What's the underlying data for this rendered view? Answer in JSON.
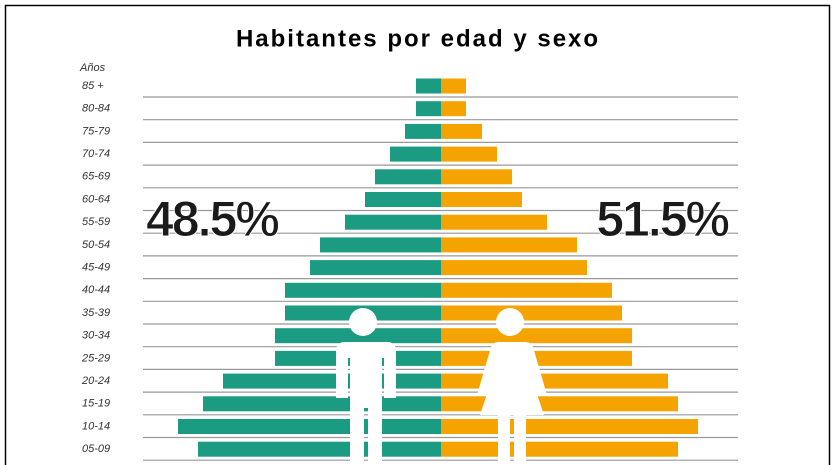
{
  "chart_data": {
    "type": "pyramid",
    "title": "Habitantes por edad y sexo",
    "y_label": "Años",
    "categories": [
      "85 +",
      "80-84",
      "75-79",
      "70-74",
      "65-69",
      "60-64",
      "55-59",
      "50-54",
      "45-49",
      "40-44",
      "35-39",
      "30-34",
      "25-29",
      "20-24",
      "15-19",
      "10-14",
      "05-09"
    ],
    "series": [
      {
        "color": "#1a9b82",
        "side": "left",
        "values": [
          25,
          25,
          36,
          51,
          66,
          76,
          96,
          121,
          131,
          156,
          156,
          166,
          166,
          218,
          238,
          263,
          243
        ]
      },
      {
        "color": "#f5a300",
        "side": "right",
        "values": [
          25,
          25,
          41,
          56,
          71,
          81,
          106,
          136,
          146,
          171,
          181,
          191,
          191,
          227,
          237,
          257,
          237
        ]
      }
    ],
    "xlim": [
      0,
      300
    ],
    "annotations": [
      "48.5%",
      "51.5%"
    ]
  }
}
